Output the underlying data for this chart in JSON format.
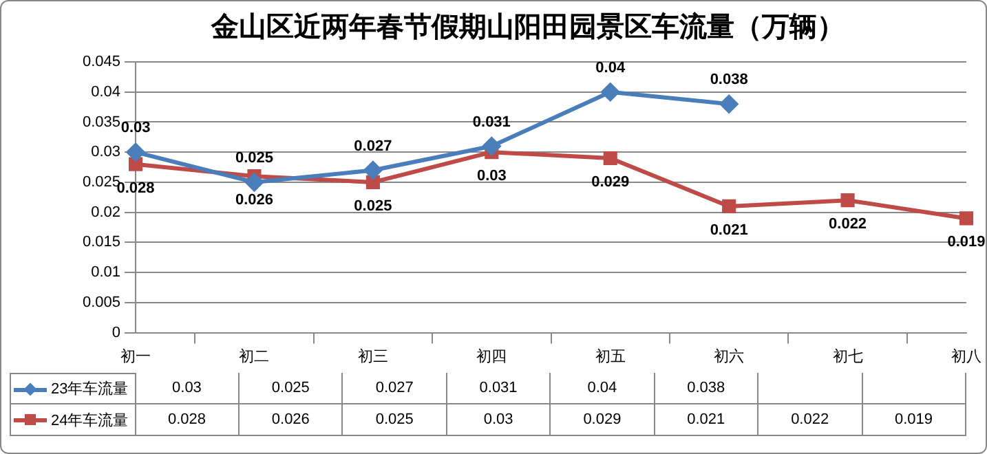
{
  "chart_data": {
    "type": "line",
    "title": "金山区近两年春节假期山阳田园景区车流量（万辆）",
    "categories": [
      "初一",
      "初二",
      "初三",
      "初四",
      "初五",
      "初六",
      "初七",
      "初八"
    ],
    "series": [
      {
        "name": "23年车流量",
        "color": "#4a7ebb",
        "marker": "diamond",
        "values": [
          0.03,
          0.025,
          0.027,
          0.031,
          0.04,
          0.038,
          null,
          null
        ],
        "value_labels": [
          "0.03",
          "0.025",
          "0.027",
          "0.031",
          "0.04",
          "0.038",
          null,
          null
        ]
      },
      {
        "name": "24年车流量",
        "color": "#be4b48",
        "marker": "square",
        "values": [
          0.028,
          0.026,
          0.025,
          0.03,
          0.029,
          0.021,
          0.022,
          0.019
        ],
        "value_labels": [
          "0.028",
          "0.026",
          "0.025",
          "0.03",
          "0.029",
          "0.021",
          "0.022",
          "0.019"
        ]
      }
    ],
    "ylim": [
      0,
      0.045
    ],
    "yticks": [
      0,
      0.005,
      0.01,
      0.015,
      0.02,
      0.025,
      0.03,
      0.035,
      0.04,
      0.045
    ],
    "grid": "y",
    "legend": "bottom"
  }
}
